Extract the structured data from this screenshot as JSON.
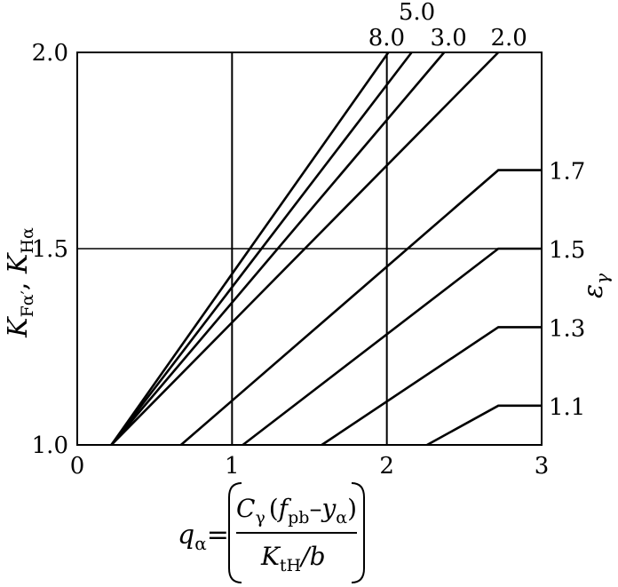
{
  "chart_data": {
    "type": "line",
    "title": "",
    "xlim": [
      0,
      3
    ],
    "ylim": [
      1.0,
      2.0
    ],
    "x_ticks": [
      "0",
      "1",
      "2",
      "3"
    ],
    "y_ticks": [
      "1.0",
      "1.5",
      "2.0"
    ],
    "grid": {
      "x": [
        1,
        2
      ],
      "y": [
        1.5
      ]
    },
    "ylabel": {
      "k1": "K",
      "k1_sub": "Fα′",
      "sep": ", ",
      "k2": "K",
      "k2_sub": "Hα"
    },
    "xlabel": {
      "q": "q",
      "q_sub": "α",
      "eq": "=",
      "num_c": "C",
      "num_c_sub": "γ",
      "num_lp": "(",
      "num_f": "f",
      "num_f_sub": "pb",
      "num_minus": "–",
      "num_y": "y",
      "num_y_sub": "α",
      "num_rp": ")",
      "den_k": "K",
      "den_k_sub": "tH",
      "den_rest": "/b"
    },
    "right_label": {
      "sym": "ε",
      "sub": "γ"
    },
    "series": [
      {
        "name": "8.0",
        "points": [
          [
            0.22,
            1.0
          ],
          [
            2.01,
            2.0
          ]
        ]
      },
      {
        "name": "5.0",
        "points": [
          [
            0.22,
            1.0
          ],
          [
            2.16,
            2.0
          ]
        ]
      },
      {
        "name": "3.0",
        "points": [
          [
            0.22,
            1.0
          ],
          [
            2.37,
            2.0
          ]
        ]
      },
      {
        "name": "2.0",
        "points": [
          [
            0.22,
            1.0
          ],
          [
            2.72,
            2.0
          ]
        ]
      },
      {
        "name": "1.7",
        "points": [
          [
            0.67,
            1.0
          ],
          [
            2.72,
            1.7
          ],
          [
            3.0,
            1.7
          ]
        ]
      },
      {
        "name": "1.5",
        "points": [
          [
            1.07,
            1.0
          ],
          [
            2.72,
            1.5
          ],
          [
            3.0,
            1.5
          ]
        ]
      },
      {
        "name": "1.3",
        "points": [
          [
            1.58,
            1.0
          ],
          [
            2.72,
            1.3
          ],
          [
            3.0,
            1.3
          ]
        ]
      },
      {
        "name": "1.1",
        "points": [
          [
            2.26,
            1.0
          ],
          [
            2.72,
            1.1
          ],
          [
            3.0,
            1.1
          ]
        ]
      }
    ]
  }
}
